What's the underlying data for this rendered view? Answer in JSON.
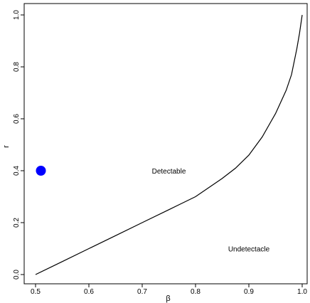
{
  "chart_data": {
    "type": "line",
    "xlabel": "β",
    "ylabel": "r",
    "xlim": [
      0.5,
      1.0
    ],
    "ylim": [
      0.0,
      1.0
    ],
    "xticks": [
      0.5,
      0.6,
      0.7,
      0.8,
      0.9,
      1.0
    ],
    "xtick_labels": [
      "0.5",
      "0.6",
      "0.7",
      "0.8",
      "0.9",
      "1.0"
    ],
    "yticks": [
      0.0,
      0.2,
      0.4,
      0.6,
      0.8,
      1.0
    ],
    "ytick_labels": [
      "0.0",
      "0.2",
      "0.4",
      "0.6",
      "0.8",
      "1.0"
    ],
    "grid": false,
    "series": [
      {
        "x": [
          0.5,
          0.55,
          0.6,
          0.65,
          0.7,
          0.75,
          0.8,
          0.85,
          0.875,
          0.9,
          0.925,
          0.95,
          0.97,
          0.98,
          0.99,
          0.995,
          1.0
        ],
        "y": [
          0.0,
          0.05,
          0.1,
          0.15,
          0.2,
          0.25,
          0.3,
          0.37,
          0.41,
          0.46,
          0.53,
          0.62,
          0.71,
          0.77,
          0.87,
          0.93,
          1.0
        ],
        "color": "#000000"
      }
    ],
    "points": [
      {
        "x": 0.51,
        "y": 0.4,
        "color": "#0000ff"
      }
    ],
    "annotations": [
      {
        "text": "Detectable",
        "x": 0.75,
        "y": 0.4
      },
      {
        "text": "Undetectacle",
        "x": 0.9,
        "y": 0.1
      }
    ]
  }
}
